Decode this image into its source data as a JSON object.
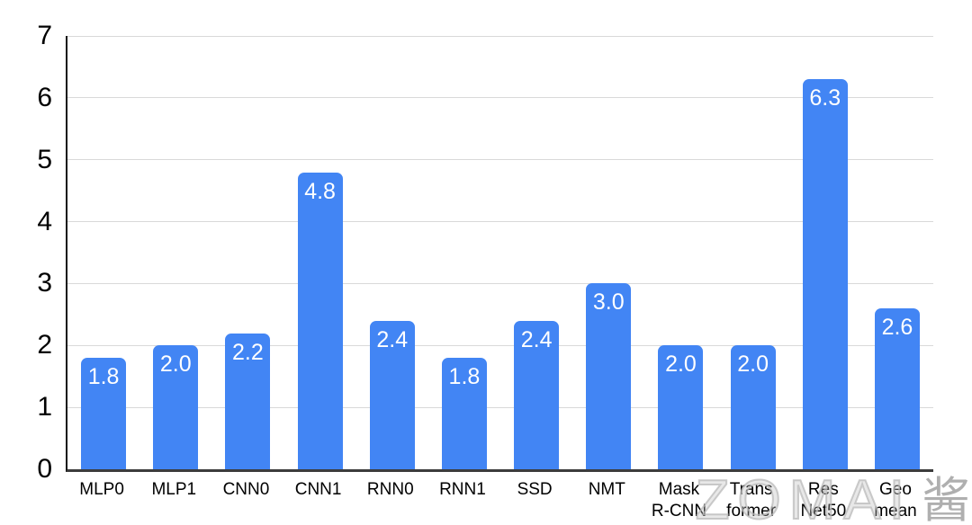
{
  "chart_data": {
    "type": "bar",
    "title": "",
    "categories": [
      "MLP0",
      "MLP1",
      "CNN0",
      "CNN1",
      "RNN0",
      "RNN1",
      "SSD",
      "NMT",
      "Mask R-CNN",
      "Transformer",
      "ResNet50",
      "Geo mean"
    ],
    "category_label_lines": [
      [
        "MLP0"
      ],
      [
        "MLP1"
      ],
      [
        "CNN0"
      ],
      [
        "CNN1"
      ],
      [
        "RNN0"
      ],
      [
        "RNN1"
      ],
      [
        "SSD"
      ],
      [
        "NMT"
      ],
      [
        "Mask",
        "R-CNN"
      ],
      [
        "Trans",
        "former"
      ],
      [
        "Res",
        "Net50"
      ],
      [
        "Geo",
        "mean"
      ]
    ],
    "values": [
      1.8,
      2.0,
      2.2,
      4.8,
      2.4,
      1.8,
      2.4,
      3.0,
      2.0,
      2.0,
      6.3,
      2.6
    ],
    "value_labels": [
      "1.8",
      "2.0",
      "2.2",
      "4.8",
      "2.4",
      "1.8",
      "2.4",
      "3.0",
      "2.0",
      "2.0",
      "6.3",
      "2.6"
    ],
    "xlabel": "",
    "ylabel": "",
    "ylim": [
      0,
      7
    ],
    "yticks": [
      0,
      1,
      2,
      3,
      4,
      5,
      6,
      7
    ],
    "grid": true,
    "legend": false,
    "bar_color": "#4285f4",
    "value_label_color": "#ffffff",
    "gridline_color": "#d9d9d9"
  },
  "watermark": {
    "latin": "ZOMAI",
    "cjk": "酱"
  }
}
